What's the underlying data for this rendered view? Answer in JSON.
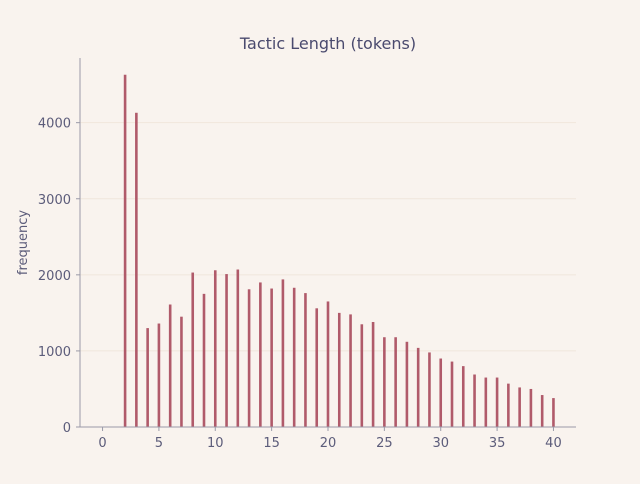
{
  "chart_data": {
    "type": "bar",
    "title": "Tactic Length (tokens)",
    "xlabel": "",
    "ylabel": "frequency",
    "xlim": [
      -2,
      42
    ],
    "ylim": [
      0,
      4850
    ],
    "x_ticks": [
      0,
      5,
      10,
      15,
      20,
      25,
      30,
      35,
      40
    ],
    "y_ticks": [
      0,
      1000,
      2000,
      3000,
      4000
    ],
    "grid": "horizontal",
    "colors": {
      "bar": "#b05a6a",
      "axis": "#9a9aa8",
      "text": "#5c5c7a",
      "title": "#4a4a6e",
      "grid": "#f0e6dc",
      "background": "#f9f3ee"
    },
    "x": [
      2,
      3,
      4,
      5,
      6,
      7,
      8,
      9,
      10,
      11,
      12,
      13,
      14,
      15,
      16,
      17,
      18,
      19,
      20,
      21,
      22,
      23,
      24,
      25,
      26,
      27,
      28,
      29,
      30,
      31,
      32,
      33,
      34,
      35,
      36,
      37,
      38,
      39,
      40
    ],
    "values": [
      4630,
      4130,
      1300,
      1360,
      1610,
      1450,
      2030,
      1750,
      2060,
      2010,
      2070,
      1810,
      1900,
      1820,
      1940,
      1830,
      1760,
      1560,
      1650,
      1500,
      1480,
      1350,
      1380,
      1180,
      1180,
      1120,
      1040,
      980,
      900,
      860,
      800,
      690,
      650,
      650,
      570,
      520,
      500,
      420,
      380
    ]
  }
}
